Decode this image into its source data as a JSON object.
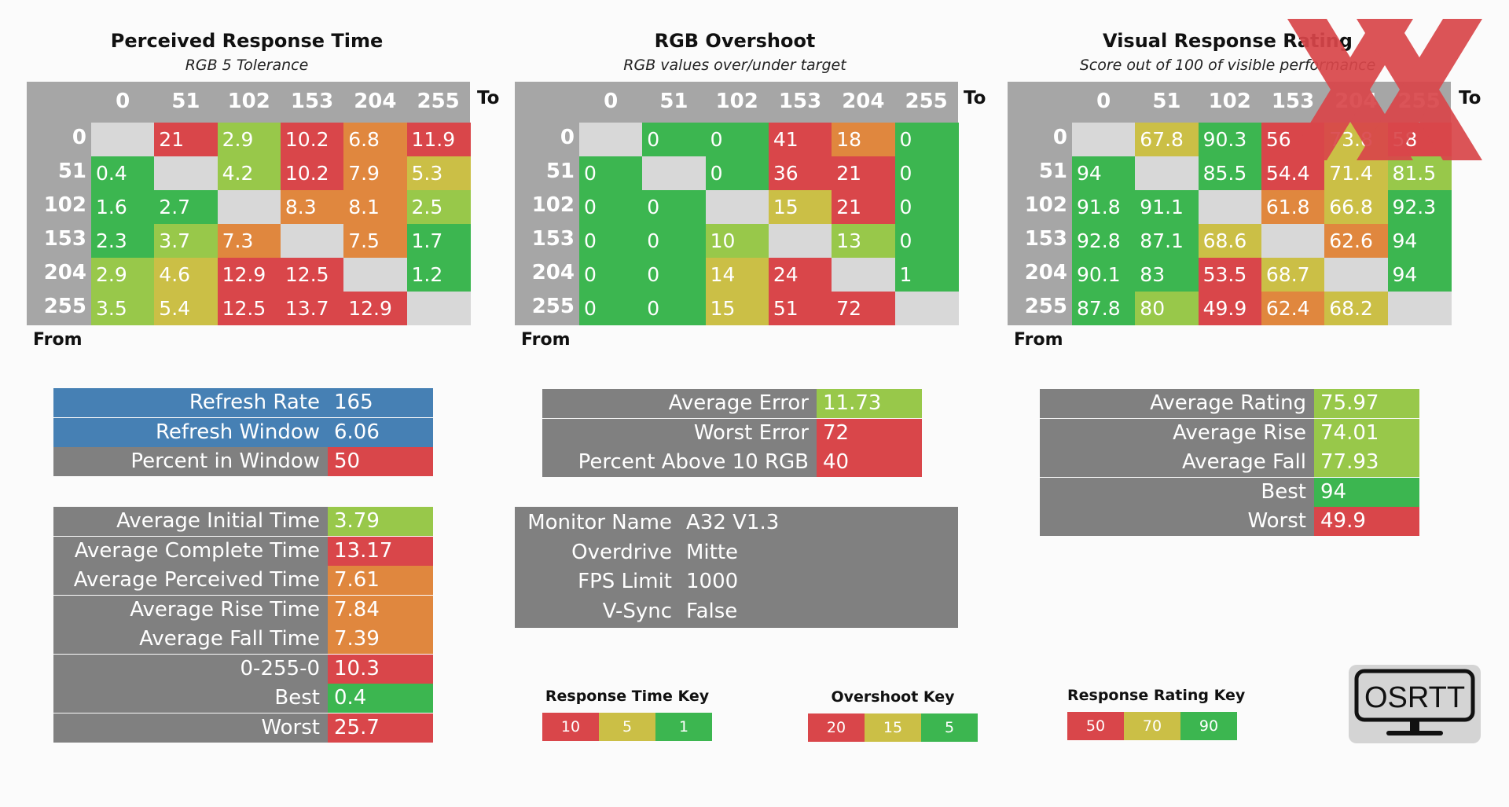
{
  "colors": {
    "green": "#3cb650",
    "lightgreen": "#98c84a",
    "yellow": "#cbbf46",
    "orange": "#e0873e",
    "red": "#d9464a",
    "empty": "#d8d8d8",
    "gray": "#808080",
    "blue": "#4680b4",
    "matrix_bg": "#a6a6a6"
  },
  "axis": {
    "from": "From",
    "to": "To",
    "levels": [
      "0",
      "51",
      "102",
      "153",
      "204",
      "255"
    ]
  },
  "matrices": [
    {
      "title": "Perceived Response Time",
      "subtitle": "RGB 5 Tolerance",
      "cells": [
        [
          null,
          "21",
          "2.9",
          "10.2",
          "6.8",
          "11.9"
        ],
        [
          "0.4",
          null,
          "4.2",
          "10.2",
          "7.9",
          "5.3"
        ],
        [
          "1.6",
          "2.7",
          null,
          "8.3",
          "8.1",
          "2.5"
        ],
        [
          "2.3",
          "3.7",
          "7.3",
          null,
          "7.5",
          "1.7"
        ],
        [
          "2.9",
          "4.6",
          "12.9",
          "12.5",
          null,
          "1.2"
        ],
        [
          "3.5",
          "5.4",
          "12.5",
          "13.7",
          "12.9",
          null
        ]
      ],
      "cell_colors": [
        [
          null,
          "red",
          "lightgreen",
          "red",
          "orange",
          "red"
        ],
        [
          "green",
          null,
          "lightgreen",
          "red",
          "orange",
          "yellow"
        ],
        [
          "green",
          "green",
          null,
          "orange",
          "orange",
          "lightgreen"
        ],
        [
          "green",
          "lightgreen",
          "orange",
          null,
          "orange",
          "green"
        ],
        [
          "lightgreen",
          "yellow",
          "red",
          "red",
          null,
          "green"
        ],
        [
          "lightgreen",
          "yellow",
          "red",
          "red",
          "red",
          null
        ]
      ]
    },
    {
      "title": "RGB Overshoot",
      "subtitle": "RGB values over/under target",
      "cells": [
        [
          null,
          "0",
          "0",
          "41",
          "18",
          "0"
        ],
        [
          "0",
          null,
          "0",
          "36",
          "21",
          "0"
        ],
        [
          "0",
          "0",
          null,
          "15",
          "21",
          "0"
        ],
        [
          "0",
          "0",
          "10",
          null,
          "13",
          "0"
        ],
        [
          "0",
          "0",
          "14",
          "24",
          null,
          "1"
        ],
        [
          "0",
          "0",
          "15",
          "51",
          "72",
          null
        ]
      ],
      "cell_colors": [
        [
          null,
          "green",
          "green",
          "red",
          "orange",
          "green"
        ],
        [
          "green",
          null,
          "green",
          "red",
          "red",
          "green"
        ],
        [
          "green",
          "green",
          null,
          "yellow",
          "red",
          "green"
        ],
        [
          "green",
          "green",
          "lightgreen",
          null,
          "lightgreen",
          "green"
        ],
        [
          "green",
          "green",
          "yellow",
          "red",
          null,
          "green"
        ],
        [
          "green",
          "green",
          "yellow",
          "red",
          "red",
          null
        ]
      ]
    },
    {
      "title": "Visual Response Rating",
      "subtitle": "Score out of 100 of visible performance",
      "cells": [
        [
          null,
          "67.8",
          "90.3",
          "56",
          "73.8",
          "58"
        ],
        [
          "94",
          null,
          "85.5",
          "54.4",
          "71.4",
          "81.5"
        ],
        [
          "91.8",
          "91.1",
          null,
          "61.8",
          "66.8",
          "92.3"
        ],
        [
          "92.8",
          "87.1",
          "68.6",
          null,
          "62.6",
          "94"
        ],
        [
          "90.1",
          "83",
          "53.5",
          "68.7",
          null,
          "94"
        ],
        [
          "87.8",
          "80",
          "49.9",
          "62.4",
          "68.2",
          null
        ]
      ],
      "cell_colors": [
        [
          null,
          "yellow",
          "green",
          "red",
          "yellow",
          "red"
        ],
        [
          "green",
          null,
          "green",
          "red",
          "yellow",
          "lightgreen"
        ],
        [
          "green",
          "green",
          null,
          "orange",
          "yellow",
          "green"
        ],
        [
          "green",
          "green",
          "yellow",
          null,
          "orange",
          "green"
        ],
        [
          "green",
          "green",
          "red",
          "yellow",
          null,
          "green"
        ],
        [
          "green",
          "lightgreen",
          "red",
          "orange",
          "yellow",
          null
        ]
      ]
    }
  ],
  "refresh": [
    {
      "label": "Refresh Rate",
      "value": "165",
      "color": "blue"
    },
    {
      "label": "Refresh Window",
      "value": "6.06",
      "color": "blue"
    },
    {
      "label": "Percent in Window",
      "value": "50",
      "color": "red"
    }
  ],
  "times": [
    {
      "label": "Average Initial Time",
      "value": "3.79",
      "color": "lightgreen"
    },
    {
      "label": "Average Complete Time",
      "value": "13.17",
      "color": "red"
    },
    {
      "label": "Average Perceived Time",
      "value": "7.61",
      "color": "orange"
    },
    {
      "label": "Average Rise Time",
      "value": "7.84",
      "color": "orange"
    },
    {
      "label": "Average Fall Time",
      "value": "7.39",
      "color": "orange"
    },
    {
      "label": "0-255-0",
      "value": "10.3",
      "color": "red"
    },
    {
      "label": "Best",
      "value": "0.4",
      "color": "green"
    },
    {
      "label": "Worst",
      "value": "25.7",
      "color": "red"
    }
  ],
  "overshoot_stats": [
    {
      "label": "Average Error",
      "value": "11.73",
      "color": "lightgreen"
    },
    {
      "label": "Worst Error",
      "value": "72",
      "color": "red"
    },
    {
      "label": "Percent Above 10 RGB",
      "value": "40",
      "color": "red"
    }
  ],
  "monitor": [
    {
      "label": "Monitor Name",
      "value": "A32 V1.3"
    },
    {
      "label": "Overdrive",
      "value": "Mitte"
    },
    {
      "label": "FPS Limit",
      "value": "1000"
    },
    {
      "label": "V-Sync",
      "value": "False"
    }
  ],
  "rating_stats": [
    {
      "label": "Average Rating",
      "value": "75.97",
      "color": "lightgreen"
    },
    {
      "label": "Average Rise",
      "value": "74.01",
      "color": "lightgreen"
    },
    {
      "label": "Average Fall",
      "value": "77.93",
      "color": "lightgreen"
    },
    {
      "label": "Best",
      "value": "94",
      "color": "green"
    },
    {
      "label": "Worst",
      "value": "49.9",
      "color": "red"
    }
  ],
  "keys": [
    {
      "title": "Response Time Key",
      "values": [
        "10",
        "5",
        "1"
      ],
      "colors": [
        "red",
        "yellow",
        "green"
      ]
    },
    {
      "title": "Overshoot Key",
      "values": [
        "20",
        "15",
        "5"
      ],
      "colors": [
        "red",
        "yellow",
        "green"
      ]
    },
    {
      "title": "Response Rating Key",
      "values": [
        "50",
        "70",
        "90"
      ],
      "colors": [
        "red",
        "yellow",
        "green"
      ]
    }
  ],
  "logo_text": "OSRTT"
}
